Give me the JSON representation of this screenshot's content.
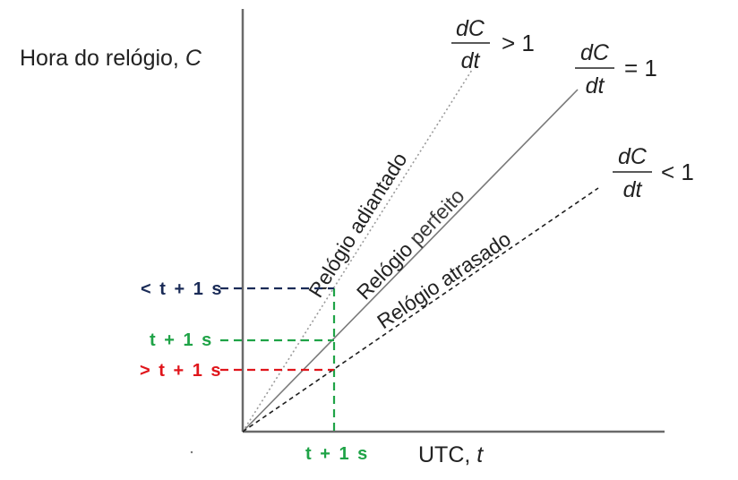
{
  "axes": {
    "y_title": "Hora do relógio, ",
    "y_var": "C",
    "x_title": "UTC, ",
    "x_var": "t"
  },
  "lines": {
    "fast": {
      "label": "Relógio adiantado",
      "rate_num": "dC",
      "rate_den": "dt",
      "rate_rel": "> 1"
    },
    "perfect": {
      "label_a": "Relógio ",
      "label_b": "perfeito",
      "rate_num": "dC",
      "rate_den": "dt",
      "rate_rel": "= 1"
    },
    "slow": {
      "label": "Relógio atrasado",
      "rate_num": "dC",
      "rate_den": "dt",
      "rate_rel": "< 1"
    }
  },
  "ticks": {
    "fast": "< t + 1 s",
    "perfect": "t + 1 s",
    "slow": "> t + 1 s",
    "x": "t + 1 s"
  },
  "colors": {
    "fast_guide": "#1a2b57",
    "perfect_guide": "#1fa347",
    "slow_guide": "#e0151b"
  }
}
